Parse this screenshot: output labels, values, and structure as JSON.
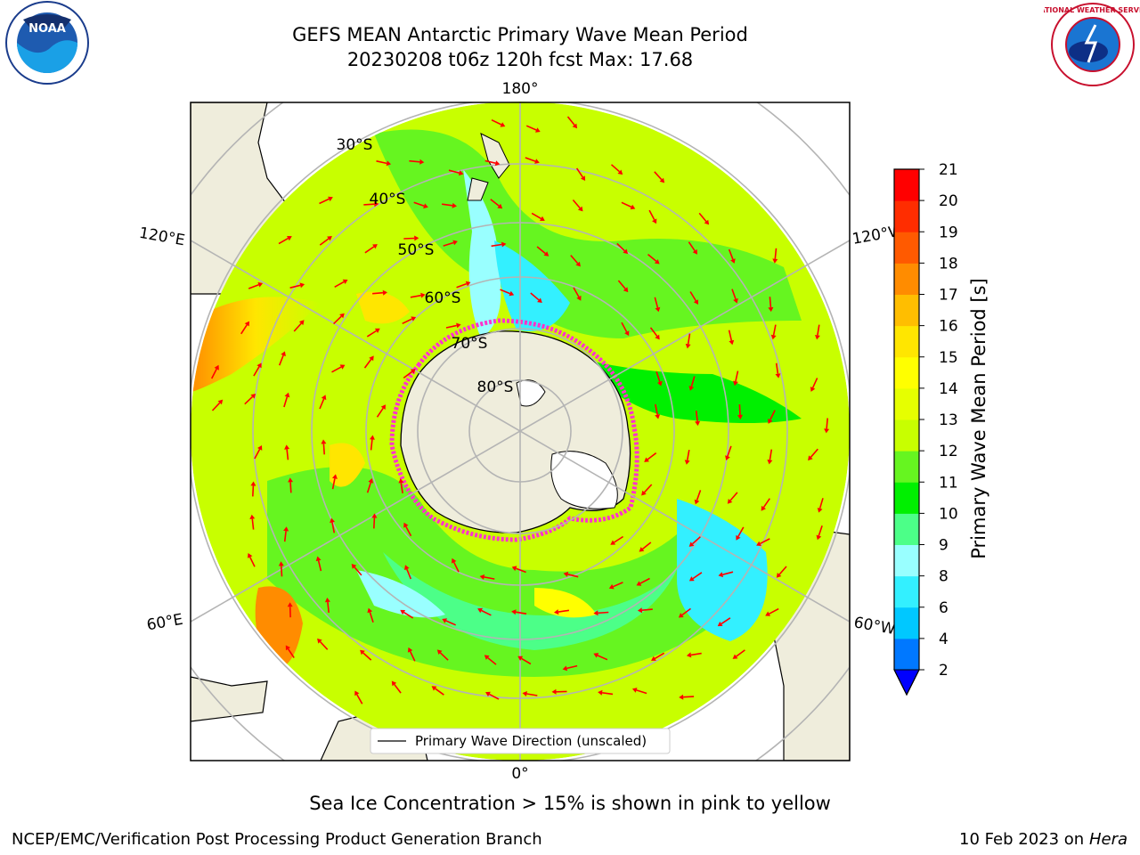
{
  "title_line1": "GEFS MEAN Antarctic Primary Wave Mean Period",
  "title_line2": "20230208 t06z 120h fcst   Max: 17.68",
  "longitude_labels": {
    "top": "180°",
    "bottom": "0°",
    "left_upper": "120°E",
    "left_lower": "60°E",
    "right_upper": "120°W",
    "right_lower": "60°W"
  },
  "latitude_labels": [
    "30°S",
    "40°S",
    "50°S",
    "60°S",
    "70°S",
    "80°S"
  ],
  "legend": {
    "line_label": "Primary Wave Direction (unscaled)"
  },
  "colorbar": {
    "label": "Primary Wave Mean Period [s]",
    "ticks": [
      "2",
      "4",
      "6",
      "8",
      "9",
      "10",
      "11",
      "12",
      "13",
      "14",
      "15",
      "16",
      "17",
      "18",
      "19",
      "20",
      "21"
    ],
    "colors": [
      "#0078ff",
      "#00c8ff",
      "#33f0ff",
      "#99ffff",
      "#4cff88",
      "#00f000",
      "#66f520",
      "#c8ff00",
      "#e6ff00",
      "#ffff00",
      "#ffe600",
      "#ffbe00",
      "#ff8c00",
      "#ff5a00",
      "#ff2d00",
      "#ff0000"
    ],
    "under_color": "#0000ff"
  },
  "caption": "Sea Ice Concentration > 15% is shown in pink to yellow",
  "credit_left": "NCEP/EMC/Verification Post Processing Product Generation Branch",
  "credit_right_date": "10 Feb 2023 on",
  "credit_right_host": "Hera",
  "logos": {
    "noaa_text": "NOAA",
    "nws_text": "NATIONAL WEATHER SERVICE"
  }
}
